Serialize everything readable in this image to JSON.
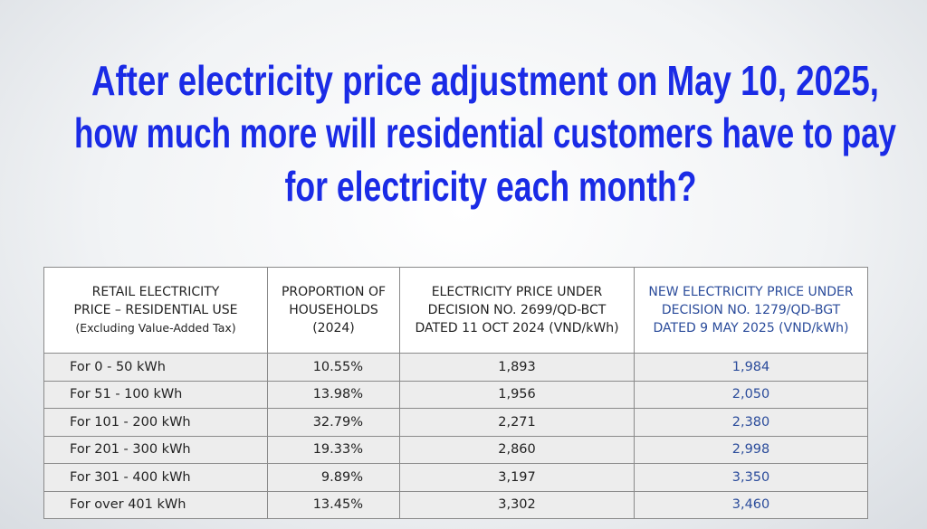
{
  "title": {
    "lines": [
      "After electricity price adjustment on May 10, 2025,",
      "how much more will residential customers have to pay",
      "for electricity each month?"
    ]
  },
  "table": {
    "header": [
      [
        "RETAIL ELECTRICITY",
        "PRICE – RESIDENTIAL USE",
        "(Excluding Value-Added Tax)"
      ],
      [
        "PROPORTION OF",
        "HOUSEHOLDS",
        "(2024)"
      ],
      [
        "ELECTRICITY PRICE UNDER",
        "DECISION NO. 2699/QD-BCT",
        "DATED 11 OCT 2024 (VND/kWh)"
      ],
      [
        "NEW ELECTRICITY PRICE UNDER",
        "DECISION NO. 1279/QD-BGT",
        "DATED 9 MAY 2025 (VND/kWh)"
      ]
    ],
    "rows": [
      [
        "For 0 - 50 kWh",
        "10.55%",
        "1,893",
        "1,984"
      ],
      [
        "For 51 - 100 kWh",
        "13.98%",
        "1,956",
        "2,050"
      ],
      [
        "For 101 - 200 kWh",
        "32.79%",
        "2,271",
        "2,380"
      ],
      [
        "For 201 - 300 kWh",
        "19.33%",
        "2,860",
        "2,998"
      ],
      [
        "For 301 - 400 kWh",
        "9.89%",
        "3,197",
        "3,350"
      ],
      [
        "For over 401 kWh",
        "13.45%",
        "3,302",
        "3,460"
      ]
    ]
  }
}
